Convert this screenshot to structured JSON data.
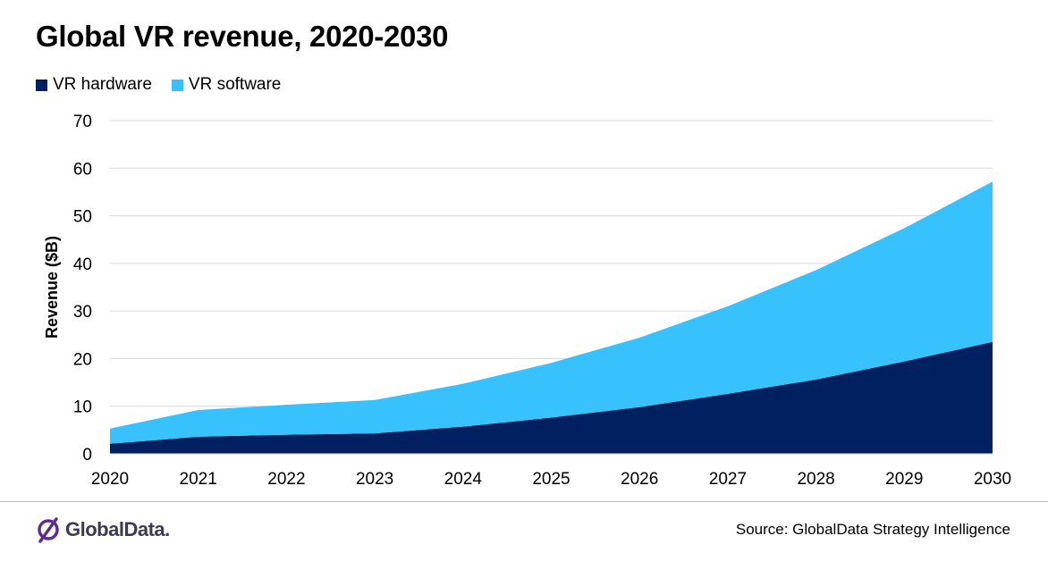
{
  "chart_data": {
    "type": "area",
    "stacked": true,
    "title": "Global VR revenue, 2020-2030",
    "xlabel": "",
    "ylabel": "Revenue ($B)",
    "ylim": [
      0,
      70
    ],
    "yticks": [
      0,
      10,
      20,
      30,
      40,
      50,
      60,
      70
    ],
    "x": [
      "2020",
      "2021",
      "2022",
      "2023",
      "2024",
      "2025",
      "2026",
      "2027",
      "2028",
      "2029",
      "2030"
    ],
    "grid": true,
    "legend_position": "top-left",
    "series": [
      {
        "name": "VR hardware",
        "color": "#002060",
        "values": [
          2.1,
          3.6,
          4.0,
          4.3,
          5.7,
          7.6,
          9.8,
          12.6,
          15.6,
          19.4,
          23.5
        ]
      },
      {
        "name": "VR software",
        "color": "#38C2FD",
        "values": [
          3.2,
          5.6,
          6.3,
          7.0,
          9.0,
          11.5,
          14.6,
          18.4,
          23.0,
          28.0,
          33.7
        ]
      }
    ]
  },
  "footer": {
    "brand": "GlobalData.",
    "source": "Source: GlobalData Strategy Intelligence"
  },
  "colors": {
    "logo_mark": "#5b2d8e",
    "grid": "#d9d9d9"
  },
  "icons": {
    "logo": "globaldata-logo-icon"
  }
}
